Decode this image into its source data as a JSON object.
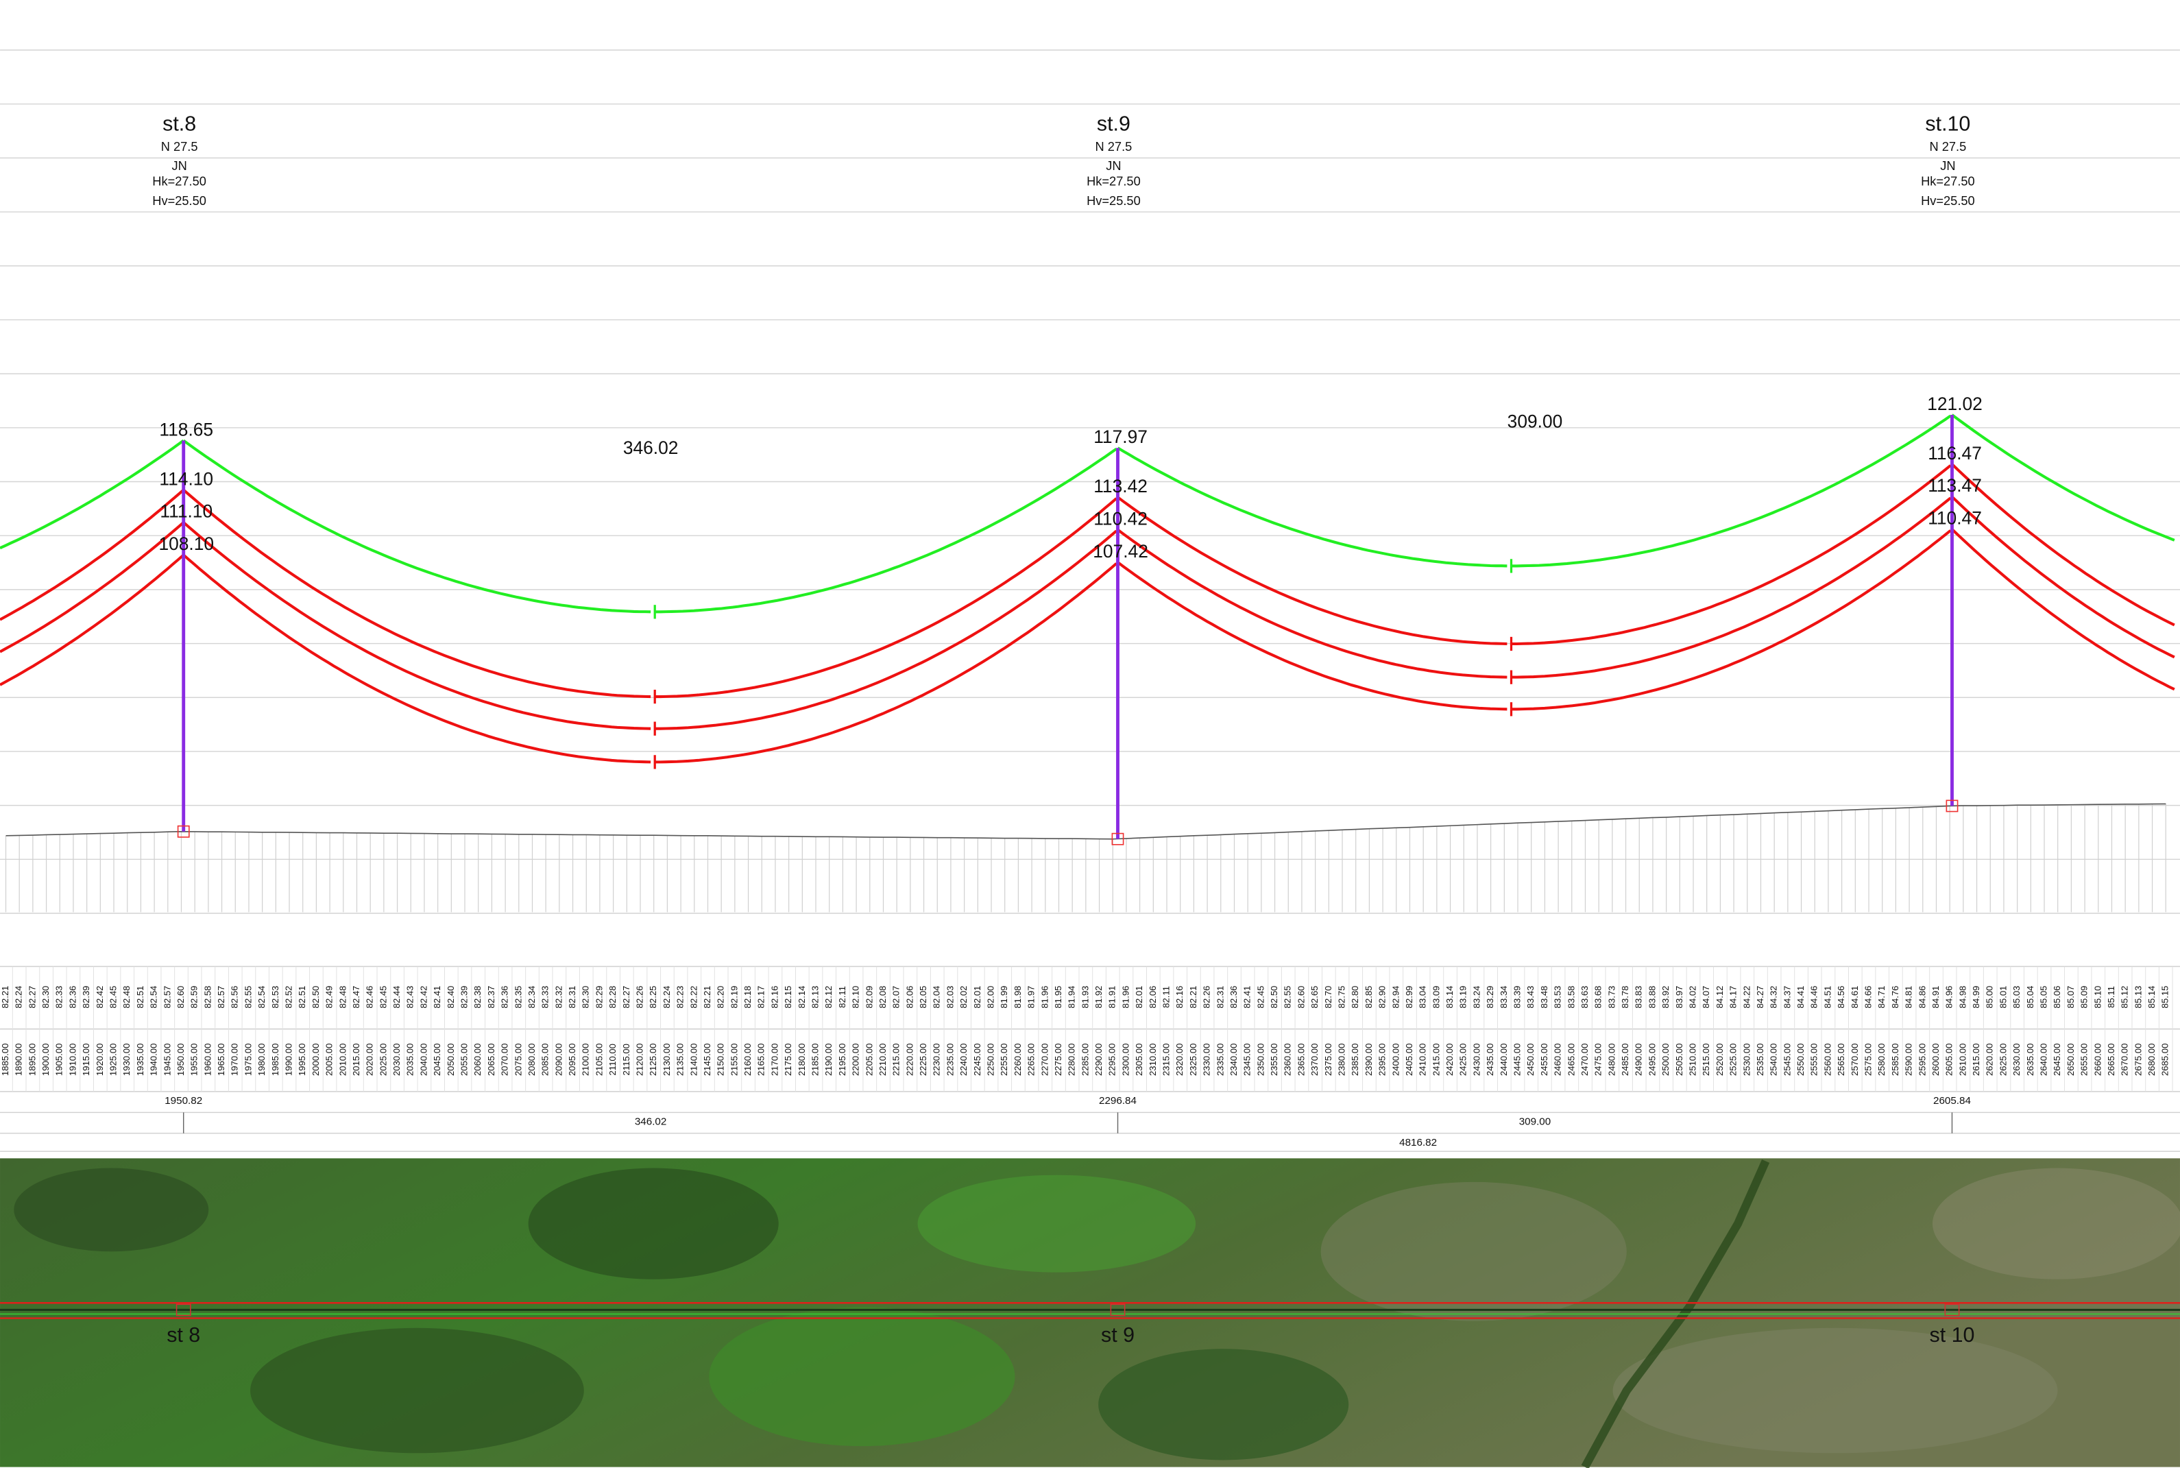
{
  "towers": [
    {
      "name": "st.8",
      "kind": "N 27.5",
      "code": "JN",
      "hk": "Hk=27.50",
      "hv": "Hv=25.50",
      "station": "1950.82",
      "heights": [
        "118.65",
        "114.10",
        "111.10",
        "108.10"
      ],
      "map_label": "st 8"
    },
    {
      "name": "st.9",
      "kind": "N 27.5",
      "code": "JN",
      "hk": "Hk=27.50",
      "hv": "Hv=25.50",
      "station": "2296.84",
      "heights": [
        "117.97",
        "113.42",
        "110.42",
        "107.42"
      ],
      "map_label": "st 9"
    },
    {
      "name": "st.10",
      "kind": "N 27.5",
      "code": "JN",
      "hk": "Hk=27.50",
      "hv": "Hv=25.50",
      "station": "2605.84",
      "heights": [
        "121.02",
        "116.47",
        "113.47",
        "110.47"
      ],
      "map_label": "st 10"
    }
  ],
  "spans": [
    {
      "length": "346.02"
    },
    {
      "length": "309.00"
    }
  ],
  "total_length": "4816.82",
  "profile": {
    "stations": [
      "1885.00",
      "1890.00",
      "1895.00",
      "1900.00",
      "1905.00",
      "1910.00",
      "1915.00",
      "1920.00",
      "1925.00",
      "1930.00",
      "1935.00",
      "1940.00",
      "1945.00",
      "1950.00",
      "1955.00",
      "1960.00",
      "1965.00",
      "1970.00",
      "1975.00",
      "1980.00",
      "1985.00",
      "1990.00",
      "1995.00",
      "2000.00",
      "2005.00",
      "2010.00",
      "2015.00",
      "2020.00",
      "2025.00",
      "2030.00",
      "2035.00",
      "2040.00",
      "2045.00",
      "2050.00",
      "2055.00",
      "2060.00",
      "2065.00",
      "2070.00",
      "2075.00",
      "2080.00",
      "2085.00",
      "2090.00",
      "2095.00",
      "2100.00",
      "2105.00",
      "2110.00",
      "2115.00",
      "2120.00",
      "2125.00",
      "2130.00",
      "2135.00",
      "2140.00",
      "2145.00",
      "2150.00",
      "2155.00",
      "2160.00",
      "2165.00",
      "2170.00",
      "2175.00",
      "2180.00",
      "2185.00",
      "2190.00",
      "2195.00",
      "2200.00",
      "2205.00",
      "2210.00",
      "2215.00",
      "2220.00",
      "2225.00",
      "2230.00",
      "2235.00",
      "2240.00",
      "2245.00",
      "2250.00",
      "2255.00",
      "2260.00",
      "2265.00",
      "2270.00",
      "2275.00",
      "2280.00",
      "2285.00",
      "2290.00",
      "2295.00",
      "2300.00",
      "2305.00",
      "2310.00",
      "2315.00",
      "2320.00",
      "2325.00",
      "2330.00",
      "2335.00",
      "2340.00",
      "2345.00",
      "2350.00",
      "2355.00",
      "2360.00",
      "2365.00",
      "2370.00",
      "2375.00",
      "2380.00",
      "2385.00",
      "2390.00",
      "2395.00",
      "2400.00",
      "2405.00",
      "2410.00",
      "2415.00",
      "2420.00",
      "2425.00",
      "2430.00",
      "2435.00",
      "2440.00",
      "2445.00",
      "2450.00",
      "2455.00",
      "2460.00",
      "2465.00",
      "2470.00",
      "2475.00",
      "2480.00",
      "2485.00",
      "2490.00",
      "2495.00",
      "2500.00",
      "2505.00",
      "2510.00",
      "2515.00",
      "2520.00",
      "2525.00",
      "2530.00",
      "2535.00",
      "2540.00",
      "2545.00",
      "2550.00",
      "2555.00",
      "2560.00",
      "2565.00",
      "2570.00",
      "2575.00",
      "2580.00",
      "2585.00",
      "2590.00",
      "2595.00",
      "2600.00",
      "2605.00",
      "2610.00",
      "2615.00",
      "2620.00",
      "2625.00",
      "2630.00",
      "2635.00",
      "2640.00",
      "2645.00",
      "2650.00",
      "2655.00",
      "2660.00",
      "2665.00",
      "2670.00",
      "2675.00",
      "2680.00",
      "2685.00"
    ],
    "elevations": [
      "82.21",
      "82.24",
      "82.27",
      "82.30",
      "82.33",
      "82.36",
      "82.39",
      "82.42",
      "82.45",
      "82.48",
      "82.51",
      "82.54",
      "82.57",
      "82.60",
      "82.59",
      "82.58",
      "82.57",
      "82.56",
      "82.55",
      "82.54",
      "82.53",
      "82.52",
      "82.51",
      "82.50",
      "82.49",
      "82.48",
      "82.47",
      "82.46",
      "82.45",
      "82.44",
      "82.43",
      "82.42",
      "82.41",
      "82.40",
      "82.39",
      "82.38",
      "82.37",
      "82.36",
      "82.35",
      "82.34",
      "82.33",
      "82.32",
      "82.31",
      "82.30",
      "82.29",
      "82.28",
      "82.27",
      "82.26",
      "82.25",
      "82.24",
      "82.23",
      "82.22",
      "82.21",
      "82.20",
      "82.19",
      "82.18",
      "82.17",
      "82.16",
      "82.15",
      "82.14",
      "82.13",
      "82.12",
      "82.11",
      "82.10",
      "82.09",
      "82.08",
      "82.07",
      "82.06",
      "82.05",
      "82.04",
      "82.03",
      "82.02",
      "82.01",
      "82.00",
      "81.99",
      "81.98",
      "81.97",
      "81.96",
      "81.95",
      "81.94",
      "81.93",
      "81.92",
      "81.91",
      "81.96",
      "82.01",
      "82.06",
      "82.11",
      "82.16",
      "82.21",
      "82.26",
      "82.31",
      "82.36",
      "82.41",
      "82.45",
      "82.50",
      "82.55",
      "82.60",
      "82.65",
      "82.70",
      "82.75",
      "82.80",
      "82.85",
      "82.90",
      "82.94",
      "82.99",
      "83.04",
      "83.09",
      "83.14",
      "83.19",
      "83.24",
      "83.29",
      "83.34",
      "83.39",
      "83.43",
      "83.48",
      "83.53",
      "83.58",
      "83.63",
      "83.68",
      "83.73",
      "83.78",
      "83.83",
      "83.88",
      "83.92",
      "83.97",
      "84.02",
      "84.07",
      "84.12",
      "84.17",
      "84.22",
      "84.27",
      "84.32",
      "84.37",
      "84.41",
      "84.46",
      "84.51",
      "84.56",
      "84.61",
      "84.66",
      "84.71",
      "84.76",
      "84.81",
      "84.86",
      "84.91",
      "84.96",
      "84.98",
      "84.99",
      "85.00",
      "85.01",
      "85.03",
      "85.04",
      "85.05",
      "85.06",
      "85.07",
      "85.09",
      "85.10",
      "85.11",
      "85.12",
      "85.13",
      "85.14",
      "85.15"
    ]
  }
}
